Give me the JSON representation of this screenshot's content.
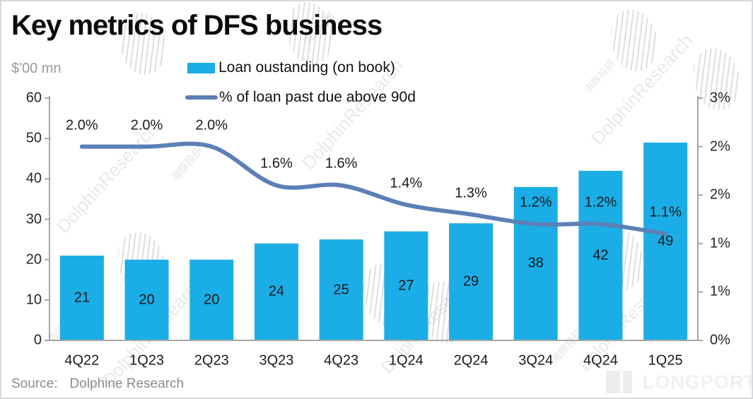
{
  "title": "Key metrics of DFS business",
  "unit_label": "$'00 mn",
  "legend": [
    {
      "label": "Loan oustanding (on book)",
      "marker": "bar-swatch",
      "color": "#1BADE6"
    },
    {
      "label": "% of loan past due above 90d",
      "marker": "line-swatch",
      "color": "#5B80B6"
    }
  ],
  "source": {
    "label": "Source:",
    "text": "Dolphine Research"
  },
  "brand": {
    "logo_text": "LONGPORT"
  },
  "watermark": {
    "latin": "DolphinResearch",
    "cjk": "海豚投研"
  },
  "colors": {
    "bar": "#1BADE6",
    "line": "#5B80B6",
    "axis": "#A6A6A6",
    "text": "#1A1A1A"
  },
  "chart_data": {
    "type": "bar",
    "subtype": "combo-bar-line-dual-axis",
    "title": "Key metrics of DFS business",
    "categories": [
      "4Q22",
      "1Q23",
      "2Q23",
      "3Q23",
      "4Q23",
      "1Q24",
      "2Q24",
      "3Q24",
      "4Q24",
      "1Q25"
    ],
    "series": [
      {
        "name": "Loan oustanding (on book)",
        "type": "bar",
        "axis": "left",
        "color": "#1BADE6",
        "values": [
          21,
          20,
          20,
          24,
          25,
          27,
          29,
          38,
          42,
          49
        ],
        "data_labels": [
          "21",
          "20",
          "20",
          "24",
          "25",
          "27",
          "29",
          "38",
          "42",
          "49"
        ]
      },
      {
        "name": "% of loan past due above 90d",
        "type": "line",
        "axis": "right",
        "color": "#5B80B6",
        "smooth": true,
        "values": [
          2.0,
          2.0,
          2.0,
          1.6,
          1.6,
          1.4,
          1.3,
          1.2,
          1.2,
          1.1
        ],
        "data_labels": [
          "2.0%",
          "2.0%",
          "2.0%",
          "1.6%",
          "1.6%",
          "1.4%",
          "1.3%",
          "1.2%",
          "1.2%",
          "1.1%"
        ]
      }
    ],
    "left_axis": {
      "title": "$'00 mn",
      "min": 0,
      "max": 60,
      "tick_values": [
        0,
        10,
        20,
        30,
        40,
        50,
        60
      ],
      "tick_labels": [
        "0",
        "10",
        "20",
        "30",
        "40",
        "50",
        "60"
      ]
    },
    "right_axis": {
      "min": 0,
      "max": 2.5,
      "tick_values": [
        0,
        0.5,
        1,
        1.5,
        2,
        2.5
      ],
      "tick_labels": [
        "0%",
        "1%",
        "1%",
        "2%",
        "2%",
        "3%"
      ]
    },
    "grid": false,
    "legend_position": "top-center"
  }
}
